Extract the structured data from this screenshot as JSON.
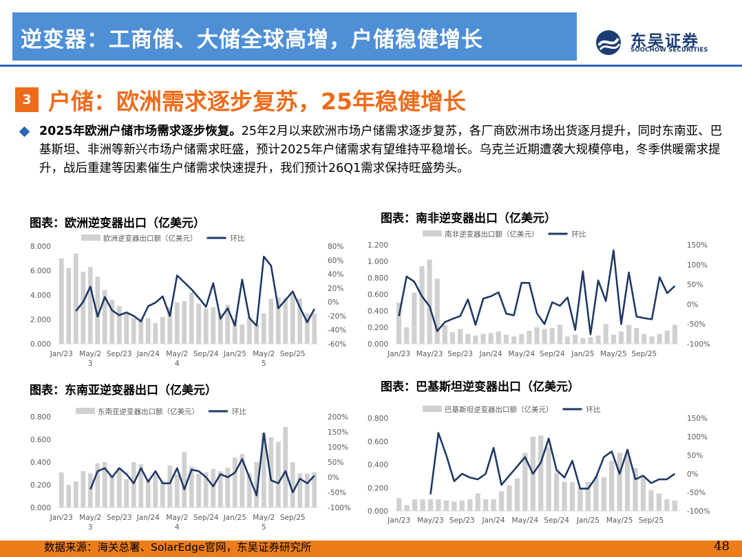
{
  "header": {
    "title": "逆变器：工商储、大储全球高增，户储稳健增长",
    "logo_cn": "东吴证券",
    "logo_en": "SOOCHOW SECURITIES"
  },
  "section": {
    "number": "3",
    "title": "户储：欧洲需求逐步复苏，25年稳健增长"
  },
  "body": {
    "lead_bold": "2025年欧洲户储市场需求逐步恢复。",
    "text": "25年2月以来欧洲市场户储需求逐步复苏，各厂商欧洲市场出货逐月提升，同时东南亚、巴基斯坦、非洲等新兴市场户储需求旺盛，预计2025年户储需求有望维持平稳增长。乌克兰近期遭袭大规模停电，冬季供暖需求提升，战后重建等因素催生户储需求快速提升，我们预计26Q1需求保持旺盛势头。"
  },
  "footer": {
    "source": "数据来源：海关总署、SolarEdge官网，东吴证券研究所",
    "page": "48"
  },
  "colors": {
    "bar": "#d0d0d0",
    "line": "#1f3864",
    "title_bar": "#4e8fd6",
    "accent": "#ee6b19",
    "footer": "#ed7d1a"
  },
  "chart_data": [
    {
      "type": "bar",
      "title": "图表：欧洲逆变器出口（亿美元）",
      "legend_bar": "欧洲逆变器出口额（亿美元）",
      "legend_line": "环比",
      "y_ticks": [
        "8.000",
        "6.000",
        "4.000",
        "2.000",
        "0.000"
      ],
      "y2_ticks": [
        "80%",
        "60%",
        "40%",
        "20%",
        "0%",
        "-20%",
        "-40%",
        "-60%"
      ],
      "x_ticks": [
        "Jan/23",
        "May/2\n3",
        "Sep/23",
        "Jan/24",
        "May/2\n4",
        "Sep/24",
        "Jan/25",
        "May/2\n5",
        "Sep/25"
      ],
      "ylim": [
        0,
        8
      ],
      "y2lim": [
        -60,
        80
      ],
      "bars": [
        7.0,
        6.2,
        7.4,
        5.9,
        6.3,
        5.5,
        4.4,
        3.6,
        3.1,
        2.5,
        2.1,
        2.1,
        2.1,
        1.7,
        2.2,
        3.0,
        3.4,
        3.5,
        4.2,
        3.3,
        2.9,
        3.0,
        2.5,
        3.2,
        2.0,
        1.6,
        2.2,
        1.6,
        2.5,
        3.7,
        3.8,
        3.7,
        4.1,
        3.7,
        2.5,
        2.5
      ],
      "line": [
        -13,
        0,
        22,
        -21,
        7,
        -12,
        -19,
        -15,
        -20,
        -28,
        -6,
        -1,
        8,
        -20,
        38,
        28,
        18,
        6,
        -7,
        27,
        -24,
        -9,
        -34,
        32,
        -23,
        -34,
        65,
        52,
        -9,
        3,
        15,
        -8,
        -29,
        -10
      ]
    },
    {
      "type": "bar",
      "title": "图表：南非逆变器出口（亿美元）",
      "legend_bar": "南非逆变器出口额（亿美元）",
      "legend_line": "环比",
      "y_ticks": [
        "1.200",
        "1.000",
        "0.800",
        "0.600",
        "0.400",
        "0.200",
        "0.000"
      ],
      "y2_ticks": [
        "150%",
        "100%",
        "50%",
        "0%",
        "-50%",
        "-100%"
      ],
      "x_ticks": [
        "Jan/23",
        "May/23",
        "Sep/23",
        "Jan/24",
        "May/24",
        "Sep/24",
        "Jan/25",
        "May/25",
        "Sep/25"
      ],
      "ylim": [
        0,
        1.2
      ],
      "y2lim": [
        -100,
        150
      ],
      "bars": [
        0.5,
        0.2,
        0.62,
        0.94,
        1.02,
        0.79,
        0.23,
        0.14,
        0.18,
        0.12,
        0.1,
        0.12,
        0.13,
        0.15,
        0.11,
        0.09,
        0.12,
        0.16,
        0.2,
        0.18,
        0.19,
        0.23,
        0.09,
        0.11,
        0.07,
        0.08,
        0.1,
        0.24,
        0.11,
        0.15,
        0.23,
        0.19,
        0.12,
        0.09,
        0.12,
        0.16,
        0.23
      ],
      "line": [
        -30,
        70,
        57,
        20,
        -5,
        -68,
        -45,
        -37,
        -30,
        12,
        -52,
        14,
        20,
        30,
        -24,
        -28,
        54,
        54,
        -23,
        -50,
        5,
        -4,
        17,
        -65,
        83,
        -76,
        60,
        8,
        136,
        -50,
        80,
        -31,
        -35,
        -38,
        68,
        28,
        46
      ]
    },
    {
      "type": "bar",
      "title": "图表：东南亚逆变器出口（亿美元）",
      "legend_bar": "东南亚逆变器出口额（亿美元）",
      "legend_line": "环比",
      "y_ticks": [
        "0.800",
        "0.600",
        "0.400",
        "0.200",
        "0.000"
      ],
      "y2_ticks": [
        "200%",
        "150%",
        "100%",
        "50%",
        "0%",
        "-50%",
        "-100%"
      ],
      "x_ticks": [
        "Jan/23",
        "May/2\n3",
        "Sep/23",
        "Jan/24",
        "May/2\n4",
        "Sep/24",
        "Jan/25",
        "May/2\n5",
        "Sep/25"
      ],
      "ylim": [
        0,
        0.8
      ],
      "y2lim": [
        -100,
        200
      ],
      "bars": [
        0.31,
        0.2,
        0.23,
        0.32,
        0.3,
        0.39,
        0.4,
        0.28,
        0.35,
        0.25,
        0.4,
        0.38,
        0.25,
        0.3,
        0.23,
        0.37,
        0.29,
        0.49,
        0.36,
        0.3,
        0.31,
        0.34,
        0.32,
        0.35,
        0.44,
        0.47,
        0.3,
        0.4,
        0.66,
        0.62,
        0.58,
        0.71,
        0.4,
        0.3,
        0.3,
        0.31
      ],
      "line": [
        -40,
        20,
        30,
        0,
        30,
        10,
        -20,
        30,
        -15,
        20,
        -20,
        -20,
        30,
        -40,
        25,
        20,
        0,
        -30,
        10,
        0,
        15,
        60,
        0,
        -60,
        145,
        -10,
        -20,
        20,
        -50,
        -5,
        -20,
        5
      ]
    },
    {
      "type": "bar",
      "title": "图表：巴基斯坦逆变器出口（亿美元）",
      "legend_bar": "巴基斯坦逆变器出口额（亿美元）",
      "legend_line": "环比",
      "y_ticks": [
        "0.800",
        "0.600",
        "0.400",
        "0.200",
        "0.000"
      ],
      "y2_ticks": [
        "150%",
        "100%",
        "50%",
        "0%",
        "-50%",
        "-100%"
      ],
      "x_ticks": [
        "Jan/23",
        "May/23",
        "Sep/23",
        "Jan/24",
        "May/24",
        "Sep/24",
        "Jan/25",
        "May/25",
        "Sep/25"
      ],
      "ylim": [
        0,
        0.8
      ],
      "y2lim": [
        -100,
        150
      ],
      "bars": [
        0.11,
        0.05,
        0.1,
        0.1,
        0.1,
        0.1,
        0.09,
        0.08,
        0.09,
        0.1,
        0.15,
        0.1,
        0.1,
        0.17,
        0.22,
        0.28,
        0.5,
        0.64,
        0.65,
        0.55,
        0.33,
        0.25,
        0.25,
        0.2,
        0.25,
        0.3,
        0.29,
        0.43,
        0.5,
        0.49,
        0.37,
        0.29,
        0.18,
        0.15,
        0.1,
        0.09
      ],
      "line": [
        -55,
        110,
        50,
        -20,
        0,
        -10,
        -15,
        0,
        70,
        -30,
        -5,
        20,
        45,
        0,
        30,
        95,
        10,
        -10,
        35,
        -40,
        -40,
        -10,
        45,
        60,
        0,
        65,
        -15,
        -5,
        -25,
        -15,
        -15,
        0
      ]
    }
  ]
}
